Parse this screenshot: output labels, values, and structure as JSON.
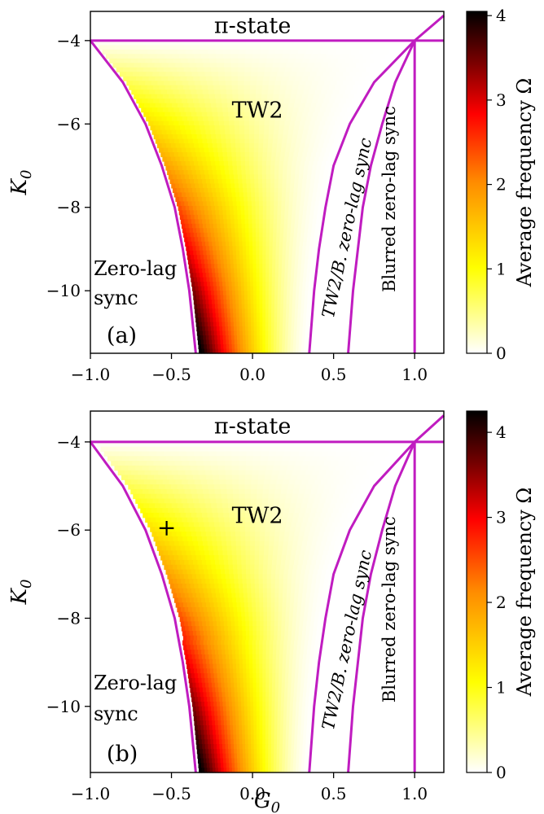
{
  "figure": {
    "xlabel": "G",
    "xlabel_sub": "0",
    "ylabel": "K",
    "ylabel_sub": "0",
    "colorbar_label": "Average frequency Ω"
  },
  "chart_data": [
    {
      "type": "heatmap",
      "panel": "(a)",
      "xlim": [
        -1.0,
        1.18
      ],
      "ylim": [
        -11.5,
        -3.3
      ],
      "xticks": [
        -1.0,
        -0.5,
        0.0,
        0.5,
        1.0
      ],
      "xtick_labels": [
        "−1.0",
        "−0.5",
        "0.0",
        "0.5",
        "1.0"
      ],
      "yticks": [
        -4,
        -6,
        -8,
        -10
      ],
      "ytick_labels": [
        "−4",
        "−6",
        "−8",
        "−10"
      ],
      "colorbar": {
        "range": [
          0,
          4.05
        ],
        "ticks": [
          0,
          1,
          2,
          3,
          4
        ],
        "tick_labels": [
          "0",
          "1",
          "2",
          "3",
          "4"
        ],
        "colormap": "afmhot_r"
      },
      "lines": [
        {
          "kind": "horizontal",
          "y": -4.0
        },
        {
          "kind": "vertical",
          "x": 1.0,
          "y_range": [
            -11.5,
            -4.0
          ]
        },
        {
          "kind": "curve",
          "points": [
            [
              -1.0,
              -4.0
            ],
            [
              -0.8,
              -5.0
            ],
            [
              -0.66,
              -6.0
            ],
            [
              -0.56,
              -7.0
            ],
            [
              -0.48,
              -8.0
            ],
            [
              -0.43,
              -9.0
            ],
            [
              -0.39,
              -10.0
            ],
            [
              -0.35,
              -11.5
            ]
          ]
        },
        {
          "kind": "curve",
          "points": [
            [
              1.18,
              -3.4
            ],
            [
              1.0,
              -4.0
            ],
            [
              0.75,
              -5.0
            ],
            [
              0.6,
              -6.0
            ],
            [
              0.5,
              -7.0
            ],
            [
              0.45,
              -8.0
            ],
            [
              0.41,
              -9.0
            ],
            [
              0.38,
              -10.0
            ],
            [
              0.35,
              -11.5
            ]
          ]
        },
        {
          "kind": "curve",
          "points": [
            [
              1.0,
              -4.0
            ],
            [
              0.88,
              -5.0
            ],
            [
              0.8,
              -6.0
            ],
            [
              0.73,
              -7.0
            ],
            [
              0.68,
              -8.0
            ],
            [
              0.65,
              -9.0
            ],
            [
              0.62,
              -10.0
            ],
            [
              0.59,
              -11.5
            ]
          ]
        }
      ],
      "annotations": [
        {
          "text": "π-state",
          "x": 0.0,
          "y": -3.67
        },
        {
          "text": "TW2",
          "x": 0.03,
          "y": -5.7
        },
        {
          "text": "Zero-lag",
          "x": -0.78,
          "y": -9.5
        },
        {
          "text": "sync",
          "x": -0.84,
          "y": -10.2
        },
        {
          "text": "(a)",
          "x": -0.83,
          "y": -11.1
        },
        {
          "text": "TW2/B. zero-lag sync",
          "x": 0.59,
          "y": -8.5,
          "rotation": -78
        },
        {
          "text": "Blurred zero-lag sync",
          "x": 0.85,
          "y": -7.8,
          "rotation": -90
        }
      ],
      "max_frequency_near": [
        -0.3,
        -11.5
      ]
    },
    {
      "type": "heatmap",
      "panel": "(b)",
      "xlim": [
        -1.0,
        1.18
      ],
      "ylim": [
        -11.5,
        -3.3
      ],
      "xticks": [
        -1.0,
        -0.5,
        0.0,
        0.5,
        1.0
      ],
      "xtick_labels": [
        "−1.0",
        "−0.5",
        "0.0",
        "0.5",
        "1.0"
      ],
      "yticks": [
        -4,
        -6,
        -8,
        -10
      ],
      "ytick_labels": [
        "−4",
        "−6",
        "−8",
        "−10"
      ],
      "colorbar": {
        "range": [
          0,
          4.25
        ],
        "ticks": [
          0,
          1,
          2,
          3,
          4
        ],
        "tick_labels": [
          "0",
          "1",
          "2",
          "3",
          "4"
        ],
        "colormap": "afmhot_r"
      },
      "lines": [
        {
          "kind": "horizontal",
          "y": -4.0
        },
        {
          "kind": "vertical",
          "x": 1.0,
          "y_range": [
            -11.5,
            -4.0
          ]
        },
        {
          "kind": "curve",
          "points": [
            [
              -1.0,
              -4.0
            ],
            [
              -0.8,
              -5.0
            ],
            [
              -0.66,
              -6.0
            ],
            [
              -0.56,
              -7.0
            ],
            [
              -0.48,
              -8.0
            ],
            [
              -0.43,
              -9.0
            ],
            [
              -0.39,
              -10.0
            ],
            [
              -0.35,
              -11.5
            ]
          ]
        },
        {
          "kind": "curve",
          "points": [
            [
              1.18,
              -3.4
            ],
            [
              1.0,
              -4.0
            ],
            [
              0.75,
              -5.0
            ],
            [
              0.6,
              -6.0
            ],
            [
              0.5,
              -7.0
            ],
            [
              0.45,
              -8.0
            ],
            [
              0.41,
              -9.0
            ],
            [
              0.38,
              -10.0
            ],
            [
              0.35,
              -11.5
            ]
          ]
        },
        {
          "kind": "curve",
          "points": [
            [
              1.0,
              -4.0
            ],
            [
              0.88,
              -5.0
            ],
            [
              0.8,
              -6.0
            ],
            [
              0.73,
              -7.0
            ],
            [
              0.68,
              -8.0
            ],
            [
              0.65,
              -9.0
            ],
            [
              0.62,
              -10.0
            ],
            [
              0.59,
              -11.5
            ]
          ]
        }
      ],
      "marker": {
        "symbol": "+",
        "x": -0.53,
        "y": -5.95,
        "color": "#2ca02c"
      },
      "annotations": [
        {
          "text": "π-state",
          "x": 0.0,
          "y": -3.67
        },
        {
          "text": "TW2",
          "x": 0.03,
          "y": -5.7
        },
        {
          "text": "Zero-lag",
          "x": -0.78,
          "y": -9.5
        },
        {
          "text": "sync",
          "x": -0.84,
          "y": -10.2
        },
        {
          "text": "(b)",
          "x": -0.83,
          "y": -11.1
        },
        {
          "text": "TW2/B. zero-lag sync",
          "x": 0.59,
          "y": -8.5,
          "rotation": -78
        },
        {
          "text": "Blurred zero-lag sync",
          "x": 0.85,
          "y": -7.8,
          "rotation": -90
        }
      ],
      "max_frequency_near": [
        -0.33,
        -11.5
      ]
    }
  ],
  "colors": {
    "boundary_line": "#c01cc0",
    "marker": "#2ca02c"
  }
}
